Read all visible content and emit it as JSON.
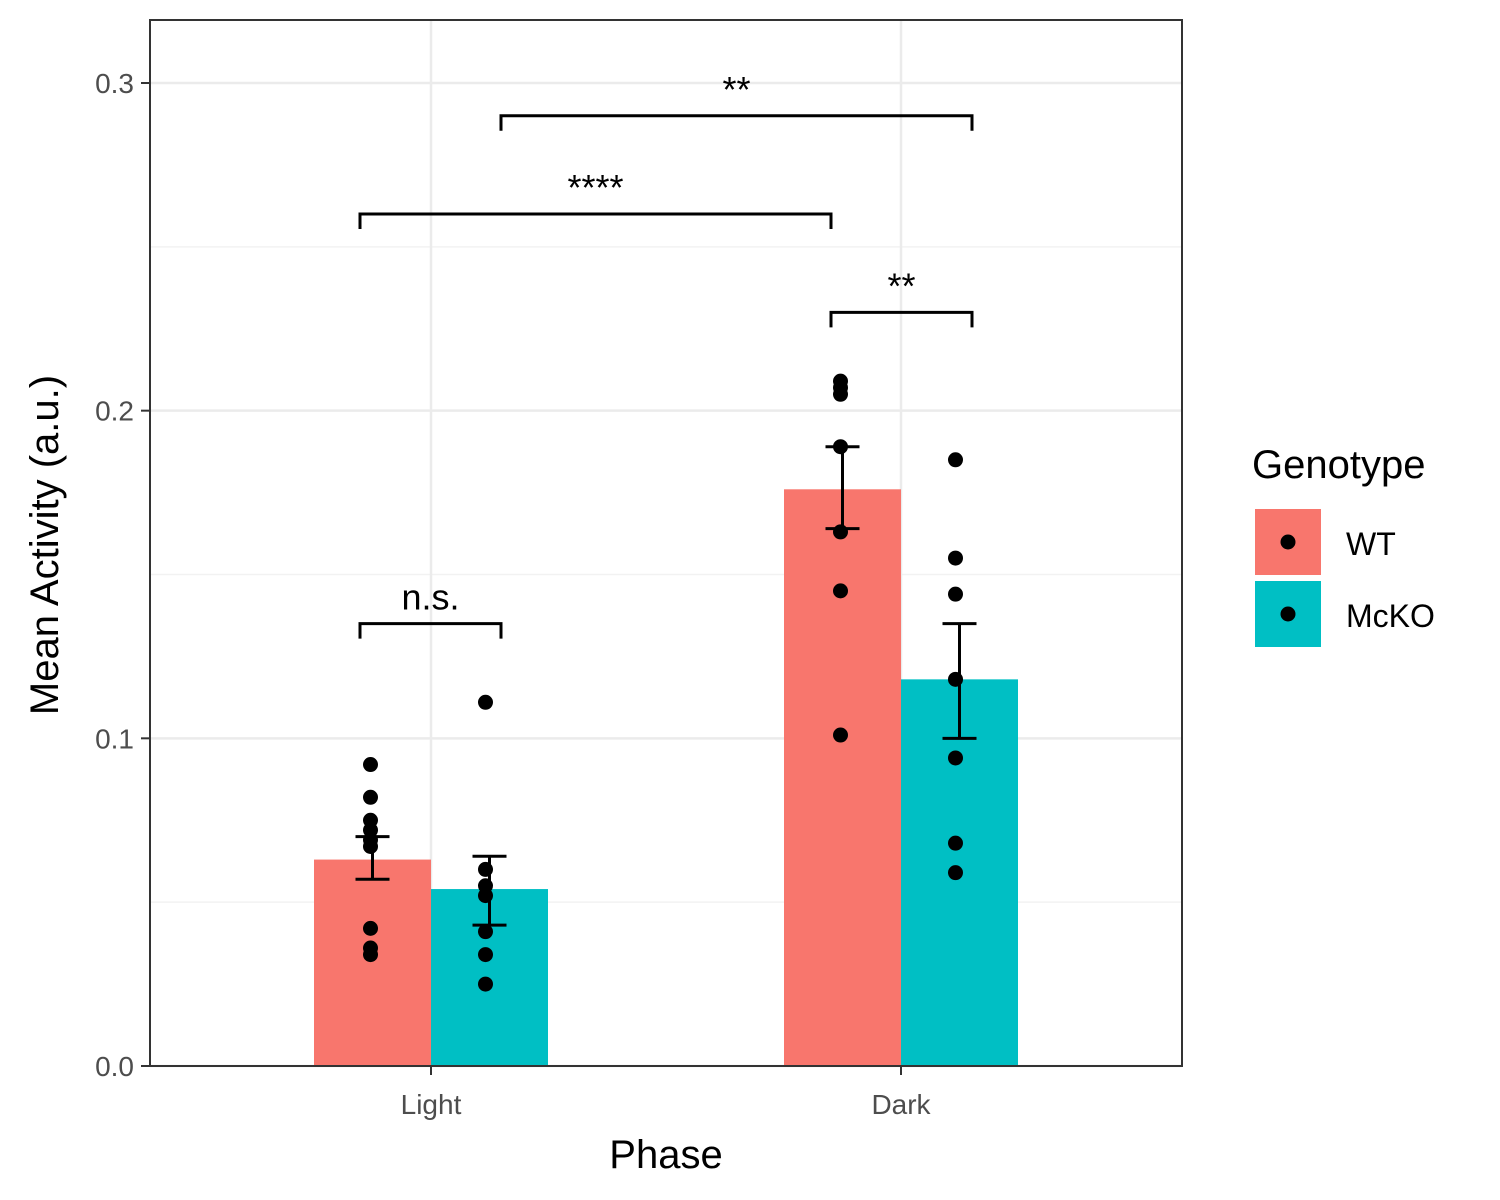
{
  "chart_data": {
    "type": "bar",
    "title": "",
    "xlabel": "Phase",
    "ylabel": "Mean Activity (a.u.)",
    "ylim": [
      0,
      0.32
    ],
    "yticks": [
      0.0,
      0.1,
      0.2,
      0.3
    ],
    "ytick_labels": [
      "0.0",
      "0.1",
      "0.2",
      "0.3"
    ],
    "grid": true,
    "categories": [
      "Light",
      "Dark"
    ],
    "legend": {
      "title": "Genotype",
      "position": "right"
    },
    "series": [
      {
        "name": "WT",
        "color": "#F8766D",
        "values": [
          0.063,
          0.176
        ],
        "error_low": [
          0.057,
          0.164
        ],
        "error_high": [
          0.07,
          0.189
        ],
        "points": [
          [
            0.092,
            0.082,
            0.075,
            0.072,
            0.069,
            0.067,
            0.042,
            0.036,
            0.034
          ],
          [
            0.209,
            0.207,
            0.205,
            0.189,
            0.163,
            0.145,
            0.101
          ]
        ]
      },
      {
        "name": "McKO",
        "color": "#00BFC4",
        "values": [
          0.054,
          0.118
        ],
        "error_low": [
          0.043,
          0.1
        ],
        "error_high": [
          0.064,
          0.135
        ],
        "points": [
          [
            0.111,
            0.06,
            0.055,
            0.052,
            0.041,
            0.034,
            0.025
          ],
          [
            0.185,
            0.155,
            0.144,
            0.118,
            0.094,
            0.068,
            0.059
          ]
        ]
      }
    ],
    "annotations": [
      {
        "label": "n.s.",
        "from": "Light-WT",
        "to": "Light-McKO",
        "y": 0.135
      },
      {
        "label": "**",
        "from": "Dark-WT",
        "to": "Dark-McKO",
        "y": 0.23
      },
      {
        "label": "****",
        "from": "Light-WT",
        "to": "Dark-WT",
        "y": 0.26
      },
      {
        "label": "**",
        "from": "Light-McKO",
        "to": "Dark-McKO",
        "y": 0.29
      }
    ]
  }
}
